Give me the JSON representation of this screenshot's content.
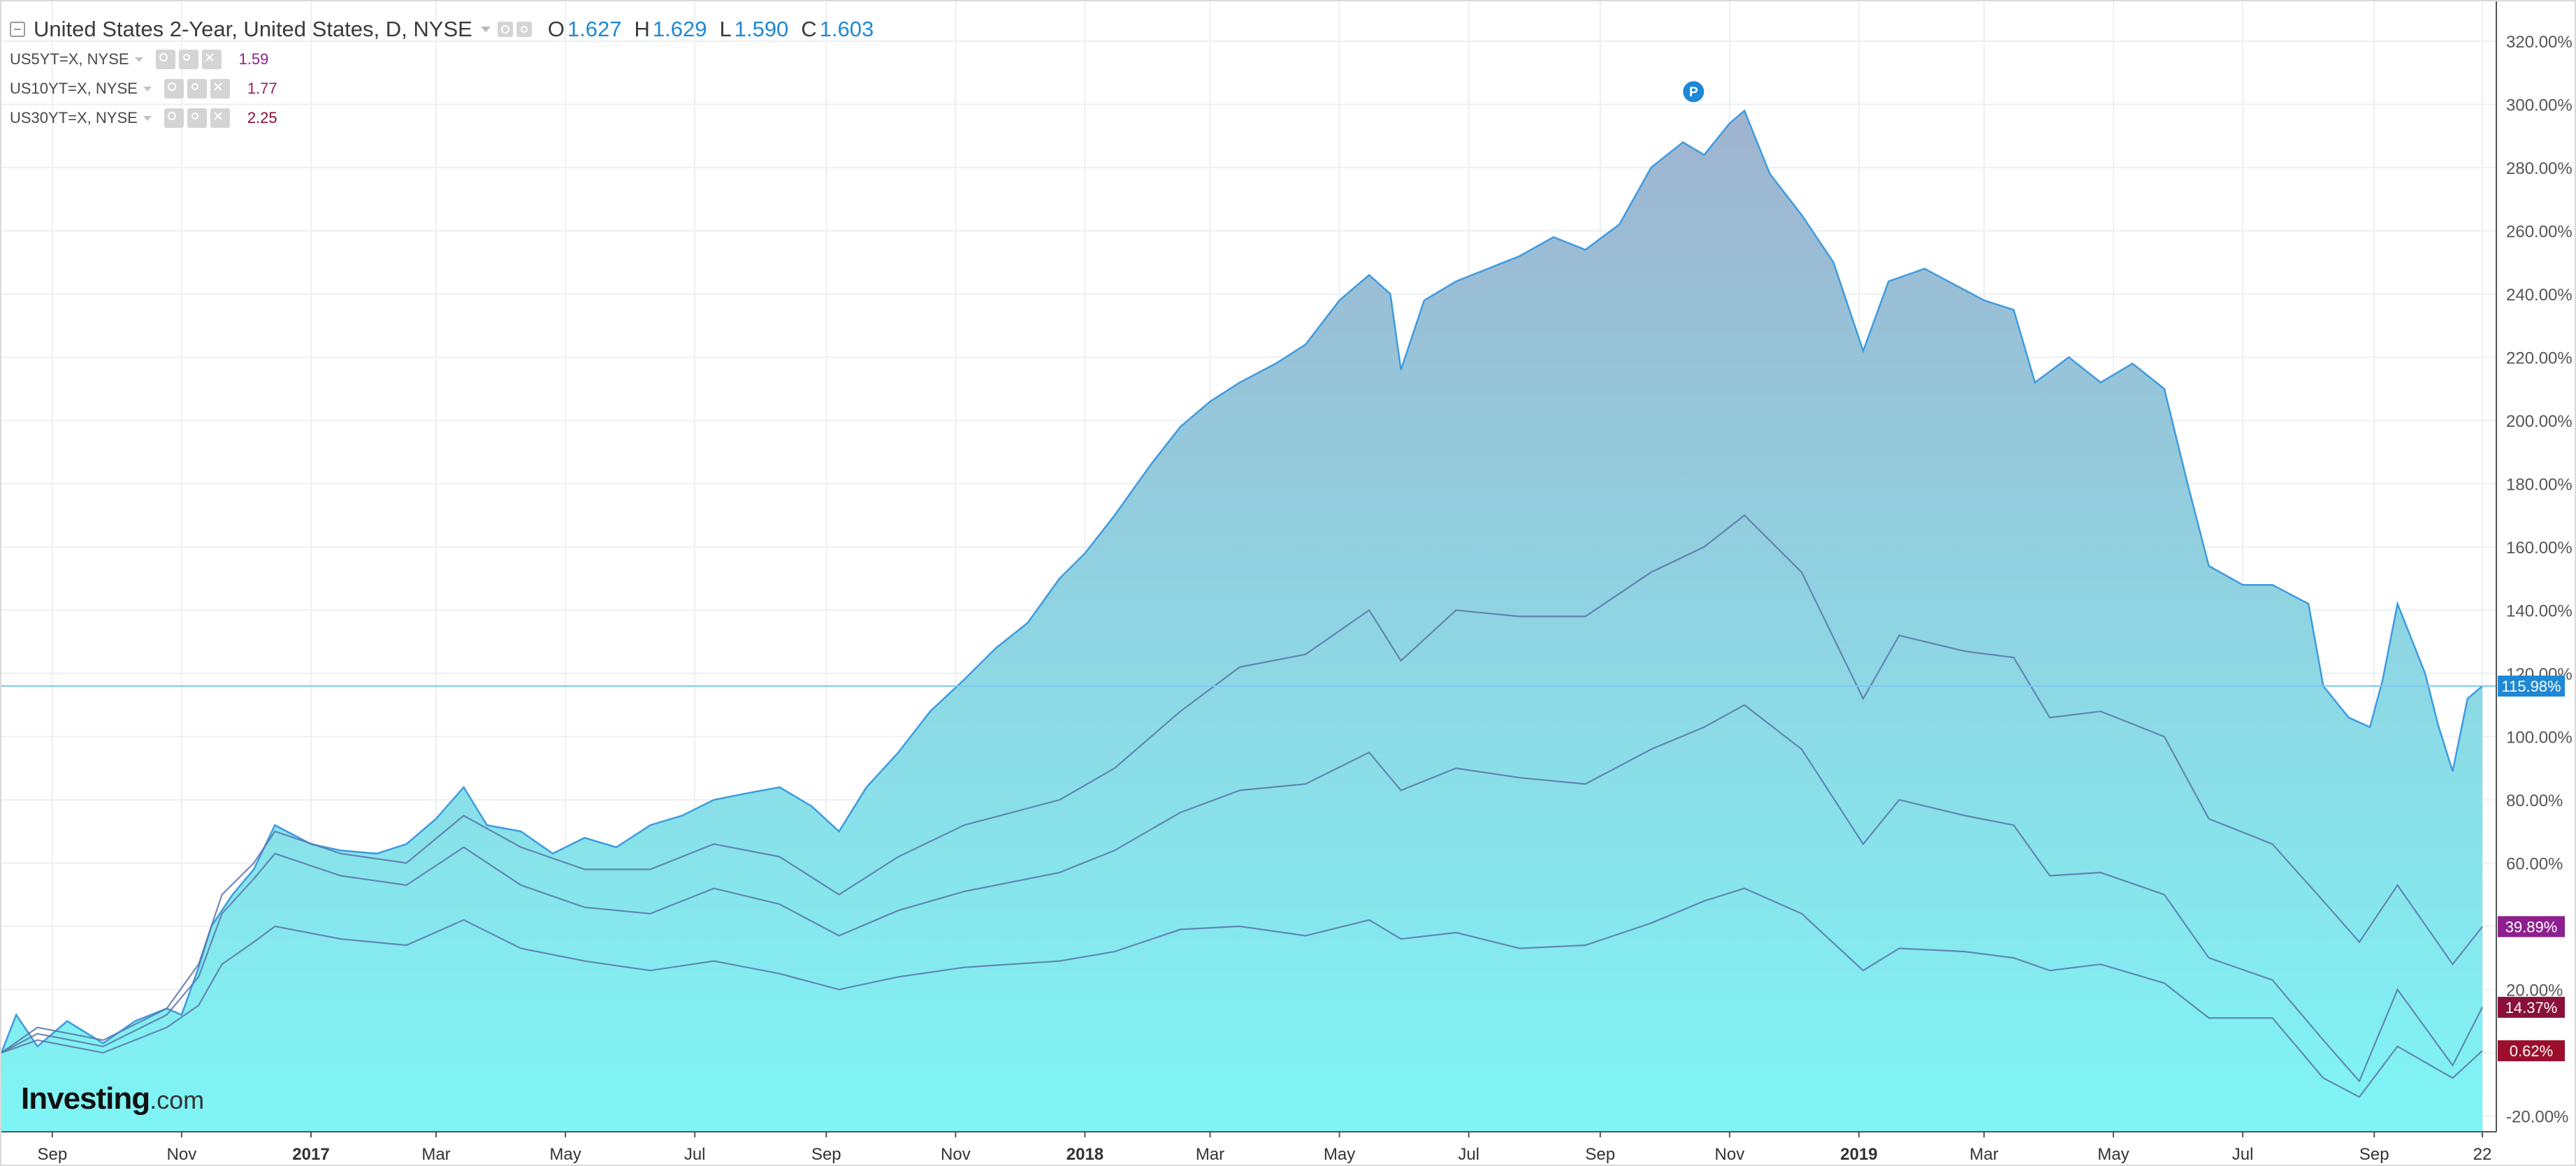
{
  "header": {
    "title": "United States 2-Year, United States, D, NYSE",
    "open_label": "O",
    "open": "1.627",
    "high_label": "H",
    "high": "1.629",
    "low_label": "L",
    "low": "1.590",
    "close_label": "C",
    "close": "1.603"
  },
  "studies": [
    {
      "name": "US5YT=X, NYSE",
      "value": "1.59",
      "color": "#8e1f8e"
    },
    {
      "name": "US10YT=X, NYSE",
      "value": "1.77",
      "color": "#9c1e5a"
    },
    {
      "name": "US30YT=X, NYSE",
      "value": "2.25",
      "color": "#8a0f3a"
    }
  ],
  "logo": {
    "main": "Investing",
    "suffix": ".com"
  },
  "colors": {
    "area_fill_top": "#9fb3cf",
    "area_fill_bottom": "#7ff5f5",
    "area_line": "#3d9be0",
    "series_line": "#5b74a8",
    "us5_line": "#b03aa0",
    "last_price_blue": "#1e88d6",
    "badge_purple": "#8e1f8e",
    "badge_maroon": "#8a0f3a",
    "badge_red": "#9c0f2c",
    "marker_blue": "#1e88d6"
  },
  "chart_data": {
    "type": "area",
    "xlabel": "",
    "ylabel": "",
    "ylim": [
      -25,
      333
    ],
    "y_ticks": [
      "320.00%",
      "300.00%",
      "280.00%",
      "260.00%",
      "240.00%",
      "220.00%",
      "200.00%",
      "180.00%",
      "160.00%",
      "140.00%",
      "120.00%",
      "100.00%",
      "80.00%",
      "60.00%",
      "40.00%",
      "20.00%",
      "0.00%",
      "-20.00%"
    ],
    "y_tick_values": [
      320,
      300,
      280,
      260,
      240,
      220,
      200,
      180,
      160,
      140,
      120,
      100,
      80,
      60,
      40,
      20,
      0,
      -20
    ],
    "x_ticks": [
      "Sep",
      "Nov",
      "2017",
      "Mar",
      "May",
      "Jul",
      "Sep",
      "Nov",
      "2018",
      "Mar",
      "May",
      "Jul",
      "Sep",
      "Nov",
      "2019",
      "Mar",
      "May",
      "Jul",
      "Sep",
      "22"
    ],
    "x_tick_dates": [
      "2016-09-01",
      "2016-11-01",
      "2017-01-01",
      "2017-03-01",
      "2017-05-01",
      "2017-07-01",
      "2017-09-01",
      "2017-11-01",
      "2018-01-01",
      "2018-03-01",
      "2018-05-01",
      "2018-07-01",
      "2018-09-01",
      "2018-11-01",
      "2019-01-01",
      "2019-03-01",
      "2019-05-01",
      "2019-07-01",
      "2019-09-01",
      "2019-10-22"
    ],
    "x_range": [
      "2016-08-08",
      "2019-10-22"
    ],
    "last_price_line": 115.98,
    "last_values": [
      {
        "label": "115.98%",
        "value": 115.98,
        "color": "#1e88d6"
      },
      {
        "label": "39.89%",
        "value": 39.89,
        "color": "#8e1f8e"
      },
      {
        "label": "14.37%",
        "value": 14.37,
        "color": "#8a0f3a"
      },
      {
        "label": "0.62%",
        "value": 0.62,
        "color": "#9c0f2c"
      }
    ],
    "marker": {
      "label": "P",
      "date": "2018-10-15",
      "value": 304
    },
    "series": [
      {
        "name": "United States 2-Year",
        "style": "area",
        "points": [
          [
            "2016-08-08",
            0
          ],
          [
            "2016-08-15",
            12
          ],
          [
            "2016-08-25",
            2
          ],
          [
            "2016-09-08",
            10
          ],
          [
            "2016-09-25",
            3
          ],
          [
            "2016-10-10",
            10
          ],
          [
            "2016-10-25",
            14
          ],
          [
            "2016-11-01",
            12
          ],
          [
            "2016-11-09",
            27
          ],
          [
            "2016-11-15",
            40
          ],
          [
            "2016-11-25",
            50
          ],
          [
            "2016-12-05",
            58
          ],
          [
            "2016-12-15",
            72
          ],
          [
            "2017-01-01",
            66
          ],
          [
            "2017-01-15",
            64
          ],
          [
            "2017-02-01",
            63
          ],
          [
            "2017-02-15",
            66
          ],
          [
            "2017-03-01",
            74
          ],
          [
            "2017-03-14",
            84
          ],
          [
            "2017-03-25",
            72
          ],
          [
            "2017-04-10",
            70
          ],
          [
            "2017-04-25",
            63
          ],
          [
            "2017-05-10",
            68
          ],
          [
            "2017-05-25",
            65
          ],
          [
            "2017-06-10",
            72
          ],
          [
            "2017-06-25",
            75
          ],
          [
            "2017-07-10",
            80
          ],
          [
            "2017-07-25",
            82
          ],
          [
            "2017-08-10",
            84
          ],
          [
            "2017-08-25",
            78
          ],
          [
            "2017-09-07",
            70
          ],
          [
            "2017-09-20",
            84
          ],
          [
            "2017-10-05",
            95
          ],
          [
            "2017-10-20",
            108
          ],
          [
            "2017-11-05",
            118
          ],
          [
            "2017-11-20",
            128
          ],
          [
            "2017-12-05",
            136
          ],
          [
            "2017-12-20",
            150
          ],
          [
            "2018-01-01",
            158
          ],
          [
            "2018-01-15",
            170
          ],
          [
            "2018-02-01",
            186
          ],
          [
            "2018-02-15",
            198
          ],
          [
            "2018-03-01",
            206
          ],
          [
            "2018-03-15",
            212
          ],
          [
            "2018-04-01",
            218
          ],
          [
            "2018-04-15",
            224
          ],
          [
            "2018-05-01",
            238
          ],
          [
            "2018-05-15",
            246
          ],
          [
            "2018-05-25",
            240
          ],
          [
            "2018-05-30",
            216
          ],
          [
            "2018-06-10",
            238
          ],
          [
            "2018-06-25",
            244
          ],
          [
            "2018-07-10",
            248
          ],
          [
            "2018-07-25",
            252
          ],
          [
            "2018-08-10",
            258
          ],
          [
            "2018-08-25",
            254
          ],
          [
            "2018-09-10",
            262
          ],
          [
            "2018-09-25",
            280
          ],
          [
            "2018-10-10",
            288
          ],
          [
            "2018-10-20",
            284
          ],
          [
            "2018-11-01",
            294
          ],
          [
            "2018-11-08",
            298
          ],
          [
            "2018-11-20",
            278
          ],
          [
            "2018-12-05",
            265
          ],
          [
            "2018-12-20",
            250
          ],
          [
            "2019-01-03",
            222
          ],
          [
            "2019-01-15",
            244
          ],
          [
            "2019-02-01",
            248
          ],
          [
            "2019-02-15",
            243
          ],
          [
            "2019-03-01",
            238
          ],
          [
            "2019-03-15",
            235
          ],
          [
            "2019-03-25",
            212
          ],
          [
            "2019-04-10",
            220
          ],
          [
            "2019-04-25",
            212
          ],
          [
            "2019-05-10",
            218
          ],
          [
            "2019-05-25",
            210
          ],
          [
            "2019-06-05",
            180
          ],
          [
            "2019-06-15",
            154
          ],
          [
            "2019-07-01",
            148
          ],
          [
            "2019-07-15",
            148
          ],
          [
            "2019-08-01",
            142
          ],
          [
            "2019-08-08",
            116
          ],
          [
            "2019-08-20",
            106
          ],
          [
            "2019-08-30",
            103
          ],
          [
            "2019-09-05",
            118
          ],
          [
            "2019-09-12",
            142
          ],
          [
            "2019-09-25",
            120
          ],
          [
            "2019-10-01",
            104
          ],
          [
            "2019-10-08",
            89
          ],
          [
            "2019-10-15",
            112
          ],
          [
            "2019-10-22",
            115.98
          ]
        ]
      },
      {
        "name": "US5YT=X, NYSE",
        "style": "line",
        "points": [
          [
            "2016-08-08",
            0
          ],
          [
            "2016-08-25",
            8
          ],
          [
            "2016-09-25",
            4
          ],
          [
            "2016-10-25",
            14
          ],
          [
            "2016-11-09",
            28
          ],
          [
            "2016-11-20",
            50
          ],
          [
            "2016-12-05",
            60
          ],
          [
            "2016-12-15",
            70
          ],
          [
            "2017-01-15",
            63
          ],
          [
            "2017-02-15",
            60
          ],
          [
            "2017-03-14",
            75
          ],
          [
            "2017-04-10",
            65
          ],
          [
            "2017-05-10",
            58
          ],
          [
            "2017-06-10",
            58
          ],
          [
            "2017-07-10",
            66
          ],
          [
            "2017-08-10",
            62
          ],
          [
            "2017-09-07",
            50
          ],
          [
            "2017-10-05",
            62
          ],
          [
            "2017-11-05",
            72
          ],
          [
            "2017-12-20",
            80
          ],
          [
            "2018-01-15",
            90
          ],
          [
            "2018-02-15",
            108
          ],
          [
            "2018-03-15",
            122
          ],
          [
            "2018-04-15",
            126
          ],
          [
            "2018-05-15",
            140
          ],
          [
            "2018-05-30",
            124
          ],
          [
            "2018-06-25",
            140
          ],
          [
            "2018-07-25",
            138
          ],
          [
            "2018-08-25",
            138
          ],
          [
            "2018-09-25",
            152
          ],
          [
            "2018-10-20",
            160
          ],
          [
            "2018-11-08",
            170
          ],
          [
            "2018-12-05",
            152
          ],
          [
            "2019-01-03",
            112
          ],
          [
            "2019-01-20",
            132
          ],
          [
            "2019-02-20",
            127
          ],
          [
            "2019-03-15",
            125
          ],
          [
            "2019-04-01",
            106
          ],
          [
            "2019-04-25",
            108
          ],
          [
            "2019-05-25",
            100
          ],
          [
            "2019-06-15",
            74
          ],
          [
            "2019-07-15",
            66
          ],
          [
            "2019-08-08",
            48
          ],
          [
            "2019-08-25",
            35
          ],
          [
            "2019-09-12",
            53
          ],
          [
            "2019-10-08",
            28
          ],
          [
            "2019-10-22",
            39.89
          ]
        ]
      },
      {
        "name": "US10YT=X, NYSE",
        "style": "line",
        "points": [
          [
            "2016-08-08",
            0
          ],
          [
            "2016-08-25",
            6
          ],
          [
            "2016-09-25",
            2
          ],
          [
            "2016-10-25",
            12
          ],
          [
            "2016-11-09",
            24
          ],
          [
            "2016-11-20",
            44
          ],
          [
            "2016-12-05",
            55
          ],
          [
            "2016-12-15",
            63
          ],
          [
            "2017-01-15",
            56
          ],
          [
            "2017-02-15",
            53
          ],
          [
            "2017-03-14",
            65
          ],
          [
            "2017-04-10",
            53
          ],
          [
            "2017-05-10",
            46
          ],
          [
            "2017-06-10",
            44
          ],
          [
            "2017-07-10",
            52
          ],
          [
            "2017-08-10",
            47
          ],
          [
            "2017-09-07",
            37
          ],
          [
            "2017-10-05",
            45
          ],
          [
            "2017-11-05",
            51
          ],
          [
            "2017-12-20",
            57
          ],
          [
            "2018-01-15",
            64
          ],
          [
            "2018-02-15",
            76
          ],
          [
            "2018-03-15",
            83
          ],
          [
            "2018-04-15",
            85
          ],
          [
            "2018-05-15",
            95
          ],
          [
            "2018-05-30",
            83
          ],
          [
            "2018-06-25",
            90
          ],
          [
            "2018-07-25",
            87
          ],
          [
            "2018-08-25",
            85
          ],
          [
            "2018-09-25",
            96
          ],
          [
            "2018-10-20",
            103
          ],
          [
            "2018-11-08",
            110
          ],
          [
            "2018-12-05",
            96
          ],
          [
            "2019-01-03",
            66
          ],
          [
            "2019-01-20",
            80
          ],
          [
            "2019-02-20",
            75
          ],
          [
            "2019-03-15",
            72
          ],
          [
            "2019-04-01",
            56
          ],
          [
            "2019-04-25",
            57
          ],
          [
            "2019-05-25",
            50
          ],
          [
            "2019-06-15",
            30
          ],
          [
            "2019-07-15",
            23
          ],
          [
            "2019-08-08",
            4
          ],
          [
            "2019-08-25",
            -9
          ],
          [
            "2019-09-12",
            20
          ],
          [
            "2019-10-08",
            -4
          ],
          [
            "2019-10-22",
            14.37
          ]
        ]
      },
      {
        "name": "US30YT=X, NYSE",
        "style": "line",
        "points": [
          [
            "2016-08-08",
            0
          ],
          [
            "2016-08-25",
            4
          ],
          [
            "2016-09-25",
            0
          ],
          [
            "2016-10-25",
            8
          ],
          [
            "2016-11-09",
            15
          ],
          [
            "2016-11-20",
            28
          ],
          [
            "2016-12-05",
            35
          ],
          [
            "2016-12-15",
            40
          ],
          [
            "2017-01-15",
            36
          ],
          [
            "2017-02-15",
            34
          ],
          [
            "2017-03-14",
            42
          ],
          [
            "2017-04-10",
            33
          ],
          [
            "2017-05-10",
            29
          ],
          [
            "2017-06-10",
            26
          ],
          [
            "2017-07-10",
            29
          ],
          [
            "2017-08-10",
            25
          ],
          [
            "2017-09-07",
            20
          ],
          [
            "2017-10-05",
            24
          ],
          [
            "2017-11-05",
            27
          ],
          [
            "2017-12-20",
            29
          ],
          [
            "2018-01-15",
            32
          ],
          [
            "2018-02-15",
            39
          ],
          [
            "2018-03-15",
            40
          ],
          [
            "2018-04-15",
            37
          ],
          [
            "2018-05-15",
            42
          ],
          [
            "2018-05-30",
            36
          ],
          [
            "2018-06-25",
            38
          ],
          [
            "2018-07-25",
            33
          ],
          [
            "2018-08-25",
            34
          ],
          [
            "2018-09-25",
            41
          ],
          [
            "2018-10-20",
            48
          ],
          [
            "2018-11-08",
            52
          ],
          [
            "2018-12-05",
            44
          ],
          [
            "2019-01-03",
            26
          ],
          [
            "2019-01-20",
            33
          ],
          [
            "2019-02-20",
            32
          ],
          [
            "2019-03-15",
            30
          ],
          [
            "2019-04-01",
            26
          ],
          [
            "2019-04-25",
            28
          ],
          [
            "2019-05-25",
            22
          ],
          [
            "2019-06-15",
            11
          ],
          [
            "2019-07-15",
            11
          ],
          [
            "2019-08-08",
            -8
          ],
          [
            "2019-08-25",
            -14
          ],
          [
            "2019-09-12",
            2
          ],
          [
            "2019-10-08",
            -8
          ],
          [
            "2019-10-22",
            0.62
          ]
        ]
      }
    ]
  }
}
